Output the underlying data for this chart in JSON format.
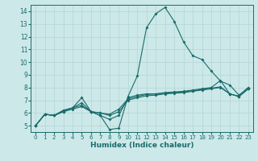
{
  "xlabel": "Humidex (Indice chaleur)",
  "xlim": [
    -0.5,
    23.5
  ],
  "ylim": [
    4.5,
    14.5
  ],
  "yticks": [
    5,
    6,
    7,
    8,
    9,
    10,
    11,
    12,
    13,
    14
  ],
  "xticks": [
    0,
    1,
    2,
    3,
    4,
    5,
    6,
    7,
    8,
    9,
    10,
    11,
    12,
    13,
    14,
    15,
    16,
    17,
    18,
    19,
    20,
    21,
    22,
    23
  ],
  "bg_color": "#cce8e8",
  "line_color": "#1a6b6b",
  "grid_color": "#b5d5d5",
  "series": [
    {
      "x": [
        0,
        1,
        2,
        3,
        4,
        5,
        6,
        7,
        8,
        9,
        10,
        11,
        12,
        13,
        14,
        15,
        16,
        17,
        18,
        19,
        20,
        21,
        22,
        23
      ],
      "y": [
        5.0,
        5.9,
        5.8,
        6.1,
        6.4,
        7.2,
        6.1,
        5.8,
        4.7,
        4.8,
        7.3,
        8.9,
        12.7,
        13.8,
        14.3,
        13.2,
        11.6,
        10.5,
        10.2,
        9.3,
        8.5,
        8.2,
        7.4,
        8.0
      ]
    },
    {
      "x": [
        0,
        1,
        2,
        3,
        4,
        5,
        6,
        7,
        8,
        9,
        10,
        11,
        12,
        13,
        14,
        15,
        16,
        17,
        18,
        19,
        20,
        21,
        22,
        23
      ],
      "y": [
        5.0,
        5.9,
        5.8,
        6.2,
        6.4,
        6.6,
        6.1,
        6.0,
        5.8,
        6.1,
        7.0,
        7.2,
        7.35,
        7.4,
        7.5,
        7.55,
        7.6,
        7.7,
        7.8,
        7.9,
        8.0,
        7.5,
        7.3,
        7.9
      ]
    },
    {
      "x": [
        0,
        1,
        2,
        3,
        4,
        5,
        6,
        7,
        8,
        9,
        10,
        11,
        12,
        13,
        14,
        15,
        16,
        17,
        18,
        19,
        20,
        21,
        22,
        23
      ],
      "y": [
        5.0,
        5.9,
        5.8,
        6.1,
        6.3,
        6.5,
        6.1,
        6.0,
        5.9,
        6.3,
        7.1,
        7.3,
        7.45,
        7.5,
        7.55,
        7.6,
        7.65,
        7.75,
        7.85,
        7.95,
        8.05,
        7.5,
        7.3,
        7.9
      ]
    },
    {
      "x": [
        0,
        1,
        2,
        3,
        4,
        5,
        6,
        7,
        8,
        9,
        10,
        11,
        12,
        13,
        14,
        15,
        16,
        17,
        18,
        19,
        20,
        21,
        22,
        23
      ],
      "y": [
        5.0,
        5.9,
        5.8,
        6.2,
        6.4,
        6.8,
        6.1,
        5.8,
        5.5,
        5.8,
        7.2,
        7.4,
        7.5,
        7.5,
        7.6,
        7.65,
        7.7,
        7.8,
        7.9,
        8.0,
        8.55,
        7.5,
        7.3,
        7.9
      ]
    }
  ]
}
